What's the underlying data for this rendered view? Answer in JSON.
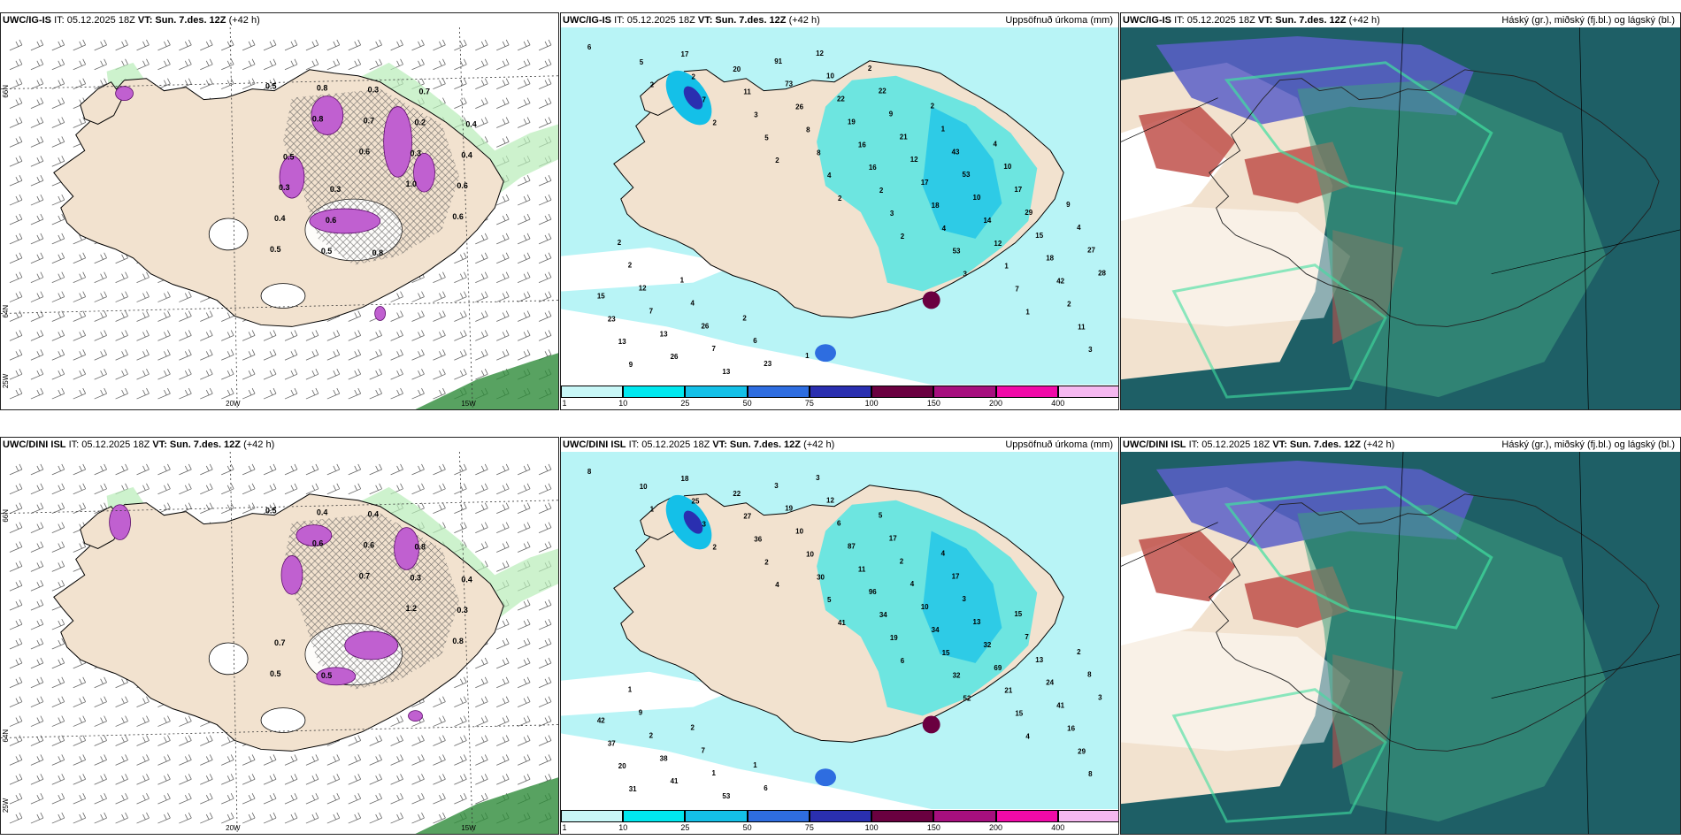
{
  "panels": [
    {
      "id": "p1",
      "type": "wind",
      "model": "UWC/IG-IS",
      "it": "IT: 05.12.2025 18Z",
      "vt_label": "VT:",
      "vt": "Sun. 7.des. 12Z",
      "lead": "(+42 h)",
      "right": ""
    },
    {
      "id": "p2",
      "type": "precip",
      "model": "UWC/IG-IS",
      "it": "IT: 05.12.2025 18Z",
      "vt_label": "VT:",
      "vt": "Sun. 7.des. 12Z",
      "lead": "(+42 h)",
      "right": "Uppsöfnuð úrkoma (mm)"
    },
    {
      "id": "p3",
      "type": "cloud",
      "model": "UWC/IG-IS",
      "it": "IT: 05.12.2025 18Z",
      "vt_label": "VT:",
      "vt": "Sun. 7.des. 12Z",
      "lead": "(+42 h)",
      "right": "Háský (gr.), miðský (fj.bl.) og lágský (bl.)"
    },
    {
      "id": "p4",
      "type": "wind",
      "model": "UWC/DINI ISL",
      "it": "IT: 05.12.2025 18Z",
      "vt_label": "VT:",
      "vt": "Sun. 7.des. 12Z",
      "lead": "(+42 h)",
      "right": ""
    },
    {
      "id": "p5",
      "type": "precip",
      "model": "UWC/DINI ISL",
      "it": "IT: 05.12.2025 18Z",
      "vt_label": "VT:",
      "vt": "Sun. 7.des. 12Z",
      "lead": "(+42 h)",
      "right": "Uppsöfnuð úrkoma (mm)"
    },
    {
      "id": "p6",
      "type": "cloud",
      "model": "UWC/DINI ISL",
      "it": "IT: 05.12.2025 18Z",
      "vt_label": "VT:",
      "vt": "Sun. 7.des. 12Z",
      "lead": "(+42 h)",
      "right": "Háský (gr.), miðský (fj.bl.) og lágský (bl.)"
    }
  ],
  "axis_labels": {
    "lon_20": "20W",
    "lon_15": "15W",
    "lat_66": "66N",
    "lat_64": "64N",
    "lat_25": "25W"
  },
  "colorbar": {
    "ticks": [
      "1",
      "10",
      "25",
      "50",
      "75",
      "100",
      "150",
      "200",
      "400"
    ],
    "colors": [
      "#c8f7f7",
      "#00e8ef",
      "#14c0e8",
      "#2e6de0",
      "#2a2fb0",
      "#6a0040",
      "#a60f7e",
      "#f00aa8",
      "#f5b8f0"
    ]
  },
  "colors": {
    "land": "#f2e2cf",
    "precip_light": "#b8f4f6",
    "snow_magenta": "#c060d0",
    "green_precip": "#b8ecb8",
    "cloud_teal": "#1e5f66",
    "cloud_green": "#3fa080",
    "cloud_red": "#c0504a",
    "cloud_blue": "#5b5fc8"
  },
  "p2_values": [
    "6",
    "2",
    "2",
    "2",
    "2",
    "2",
    "3",
    "1",
    "3",
    "5",
    "7",
    "5",
    "4",
    "3",
    "53",
    "7",
    "11",
    "9",
    "2",
    "3",
    "8",
    "2",
    "4",
    "1",
    "2",
    "13",
    "17",
    "11",
    "8",
    "16",
    "18",
    "12",
    "42",
    "23",
    "26",
    "20",
    "26",
    "16",
    "17",
    "14",
    "18",
    "15",
    "13",
    "13",
    "73",
    "19",
    "12",
    "10",
    "15",
    "28",
    "7",
    "7",
    "91",
    "22",
    "21",
    "53",
    "29",
    "27",
    "12",
    "26",
    "23",
    "10",
    "9",
    "43",
    "17",
    "4",
    "2",
    "4",
    "6",
    "12",
    "22",
    "1",
    "10",
    "9",
    "2",
    "1",
    "2",
    "1",
    "2",
    "2",
    "4"
  ],
  "p5_values": [
    "8",
    "1",
    "2",
    "4",
    "41",
    "6",
    "52",
    "4",
    "8",
    "10",
    "3",
    "2",
    "5",
    "19",
    "32",
    "15",
    "29",
    "31",
    "25",
    "36",
    "30",
    "34",
    "15",
    "21",
    "16",
    "20",
    "18",
    "27",
    "10",
    "96",
    "34",
    "69",
    "41",
    "37",
    "41",
    "22",
    "10",
    "11",
    "10",
    "32",
    "24",
    "42",
    "38",
    "53",
    "19",
    "87",
    "4",
    "13",
    "13",
    "3",
    "2",
    "1",
    "3",
    "6",
    "2",
    "3",
    "7",
    "8",
    "9",
    "7",
    "6",
    "12",
    "17",
    "17",
    "15",
    "2",
    "1",
    "2",
    "1",
    "3",
    "5",
    "4"
  ],
  "p1_values": [
    "0.5",
    "0.8",
    "0.6",
    "1.0",
    "0.6",
    "0.5",
    "0.8",
    "0.7",
    "0.3",
    "0.6",
    "0.4",
    "0.5",
    "0.3",
    "0.2",
    "0.4",
    "0.3",
    "0.6",
    "0.8",
    "0.7",
    "0.4",
    "0.5",
    "0.3"
  ],
  "p4_values": [
    "0.5",
    "0.6",
    "0.7",
    "1.2",
    "0.8",
    "0.5",
    "0.4",
    "0.6",
    "0.3",
    "0.3",
    "0.7",
    "0.5",
    "0.4",
    "0.8",
    "0.4"
  ]
}
